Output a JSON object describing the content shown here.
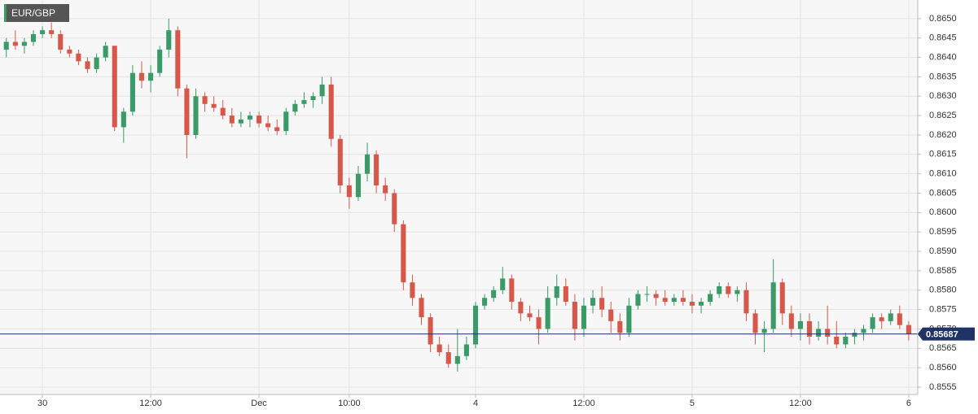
{
  "chart_data": {
    "type": "candlestick",
    "title": "EUR/GBP",
    "x": [
      -4,
      -3,
      -2,
      -1,
      0,
      1,
      2,
      3,
      4,
      5,
      6,
      7,
      8,
      9,
      10,
      11,
      12,
      13,
      14,
      15,
      16,
      17,
      18,
      19,
      20,
      21,
      22,
      23,
      24,
      25,
      26,
      27,
      28,
      29,
      30,
      31,
      32,
      33,
      34,
      35,
      36,
      37,
      38,
      39,
      40,
      41,
      42,
      43,
      44,
      45,
      46,
      47,
      48,
      49,
      50,
      51,
      52,
      53,
      54,
      55,
      56,
      57,
      58,
      59,
      60,
      61,
      62,
      63,
      64,
      65,
      66,
      67,
      68,
      69,
      70,
      71,
      72,
      73,
      74,
      75,
      76,
      77,
      78,
      79,
      80,
      81,
      82,
      83,
      84,
      85,
      86,
      87,
      88,
      89,
      90,
      91,
      92,
      93,
      94,
      95,
      96
    ],
    "open": [
      0.8642,
      0.8644,
      0.8643,
      0.8644,
      0.8646,
      0.8647,
      0.8646,
      0.8642,
      0.8641,
      0.8639,
      0.8637,
      0.864,
      0.8643,
      0.8622,
      0.8626,
      0.8636,
      0.8634,
      0.8636,
      0.8642,
      0.8647,
      0.8632,
      0.862,
      0.863,
      0.8628,
      0.8627,
      0.8625,
      0.8623,
      0.8624,
      0.8625,
      0.8623,
      0.8622,
      0.8621,
      0.8626,
      0.8628,
      0.8629,
      0.863,
      0.8633,
      0.8619,
      0.8607,
      0.8604,
      0.861,
      0.8615,
      0.8607,
      0.8605,
      0.8597,
      0.8582,
      0.8578,
      0.8573,
      0.8566,
      0.8564,
      0.8561,
      0.8563,
      0.8566,
      0.8576,
      0.8578,
      0.858,
      0.8583,
      0.8577,
      0.8574,
      0.8573,
      0.857,
      0.8578,
      0.8581,
      0.8577,
      0.857,
      0.8576,
      0.8578,
      0.8575,
      0.8572,
      0.8569,
      0.8576,
      0.8579,
      0.8579,
      0.8578,
      0.8577,
      0.8578,
      0.8577,
      0.8576,
      0.8577,
      0.8579,
      0.8581,
      0.8579,
      0.858,
      0.8574,
      0.8569,
      0.857,
      0.8582,
      0.8574,
      0.857,
      0.8572,
      0.8568,
      0.857,
      0.8568,
      0.8566,
      0.8568,
      0.8569,
      0.857,
      0.8573,
      0.8572,
      0.8574,
      0.8571
    ],
    "high": [
      0.8645,
      0.8647,
      0.8645,
      0.8647,
      0.8648,
      0.8649,
      0.8647,
      0.8643,
      0.8642,
      0.864,
      0.8641,
      0.8644,
      0.8643,
      0.8627,
      0.8638,
      0.8639,
      0.8638,
      0.8643,
      0.865,
      0.8648,
      0.8633,
      0.8632,
      0.8631,
      0.863,
      0.8629,
      0.8627,
      0.8626,
      0.8626,
      0.8626,
      0.8625,
      0.8624,
      0.8627,
      0.8629,
      0.8631,
      0.8631,
      0.8635,
      0.8635,
      0.862,
      0.8609,
      0.8612,
      0.8618,
      0.8616,
      0.8609,
      0.8606,
      0.8598,
      0.8584,
      0.8579,
      0.8574,
      0.8568,
      0.8566,
      0.857,
      0.8568,
      0.8577,
      0.8579,
      0.8581,
      0.8586,
      0.8584,
      0.8578,
      0.8576,
      0.8575,
      0.8581,
      0.8584,
      0.8583,
      0.8579,
      0.8578,
      0.858,
      0.8581,
      0.8577,
      0.8574,
      0.8578,
      0.858,
      0.8581,
      0.858,
      0.858,
      0.8579,
      0.858,
      0.8579,
      0.8578,
      0.858,
      0.8582,
      0.8582,
      0.8581,
      0.8582,
      0.8575,
      0.8572,
      0.8588,
      0.8583,
      0.8576,
      0.8574,
      0.8574,
      0.8572,
      0.8576,
      0.8572,
      0.8569,
      0.857,
      0.8571,
      0.8574,
      0.8574,
      0.8575,
      0.8576,
      0.8572
    ],
    "low": [
      0.864,
      0.8642,
      0.8641,
      0.8643,
      0.8645,
      0.8645,
      0.8641,
      0.864,
      0.8638,
      0.8636,
      0.8636,
      0.8639,
      0.8621,
      0.8618,
      0.8625,
      0.8632,
      0.8631,
      0.8635,
      0.864,
      0.863,
      0.8614,
      0.8619,
      0.8626,
      0.8626,
      0.8624,
      0.8622,
      0.8622,
      0.8622,
      0.8622,
      0.8621,
      0.862,
      0.862,
      0.8625,
      0.8627,
      0.8627,
      0.8628,
      0.8617,
      0.8605,
      0.8601,
      0.8603,
      0.8608,
      0.8605,
      0.8603,
      0.8595,
      0.858,
      0.8576,
      0.8571,
      0.8564,
      0.8563,
      0.856,
      0.8559,
      0.8562,
      0.8565,
      0.8575,
      0.8577,
      0.8579,
      0.8575,
      0.8572,
      0.8572,
      0.8566,
      0.8569,
      0.8576,
      0.8576,
      0.8567,
      0.8568,
      0.8574,
      0.8573,
      0.8569,
      0.8567,
      0.8568,
      0.8575,
      0.8577,
      0.8576,
      0.8576,
      0.8576,
      0.8576,
      0.8574,
      0.8574,
      0.8576,
      0.8578,
      0.8578,
      0.8577,
      0.8572,
      0.8566,
      0.8564,
      0.8569,
      0.8571,
      0.8568,
      0.8567,
      0.8566,
      0.8567,
      0.8566,
      0.8565,
      0.8565,
      0.8566,
      0.8567,
      0.8569,
      0.857,
      0.8571,
      0.857,
      0.8567
    ],
    "close": [
      0.8644,
      0.8643,
      0.8644,
      0.8646,
      0.8647,
      0.8646,
      0.8642,
      0.8641,
      0.8639,
      0.8637,
      0.864,
      0.8643,
      0.8622,
      0.8626,
      0.8636,
      0.8634,
      0.8636,
      0.8642,
      0.8647,
      0.8632,
      0.862,
      0.863,
      0.8628,
      0.8627,
      0.8625,
      0.8623,
      0.8624,
      0.8625,
      0.8623,
      0.8622,
      0.8621,
      0.8626,
      0.8628,
      0.8629,
      0.863,
      0.8633,
      0.8619,
      0.8607,
      0.8604,
      0.861,
      0.8615,
      0.8607,
      0.8605,
      0.8597,
      0.8582,
      0.8578,
      0.8573,
      0.8566,
      0.8564,
      0.8561,
      0.8563,
      0.8566,
      0.8576,
      0.8578,
      0.858,
      0.8583,
      0.8577,
      0.8574,
      0.8573,
      0.857,
      0.8578,
      0.8581,
      0.8577,
      0.857,
      0.8576,
      0.8578,
      0.8575,
      0.8572,
      0.8569,
      0.8576,
      0.8579,
      0.8579,
      0.8578,
      0.8577,
      0.8578,
      0.8577,
      0.8576,
      0.8577,
      0.8579,
      0.8581,
      0.8579,
      0.858,
      0.8574,
      0.8569,
      0.857,
      0.8582,
      0.8574,
      0.857,
      0.8572,
      0.8568,
      0.857,
      0.8568,
      0.8566,
      0.8568,
      0.8569,
      0.857,
      0.8573,
      0.8572,
      0.8574,
      0.8571,
      0.85687
    ],
    "up_color": "#3a9a68",
    "down_color": "#d6584a",
    "last_price": 0.85687,
    "last_price_color": "#1f3364",
    "xlim": [
      -4.7,
      97.0
    ],
    "xticks": [
      {
        "value": 0,
        "label": "30"
      },
      {
        "value": 12,
        "label": "12:00"
      },
      {
        "value": 24,
        "label": "Dec"
      },
      {
        "value": 34,
        "label": "10:00"
      },
      {
        "value": 48,
        "label": "4"
      },
      {
        "value": 60,
        "label": "12:00"
      },
      {
        "value": 72,
        "label": "5"
      },
      {
        "value": 84,
        "label": "12:00"
      },
      {
        "value": 96,
        "label": "6"
      }
    ],
    "ylim": [
      0.85531,
      0.86548
    ],
    "yticks": [
      {
        "value": 0.8555,
        "label": "0.8555"
      },
      {
        "value": 0.856,
        "label": "0.8560"
      },
      {
        "value": 0.8565,
        "label": "0.8565"
      },
      {
        "value": 0.857,
        "label": "0.8570"
      },
      {
        "value": 0.8575,
        "label": "0.8575"
      },
      {
        "value": 0.858,
        "label": "0.8580"
      },
      {
        "value": 0.8585,
        "label": "0.8585"
      },
      {
        "value": 0.859,
        "label": "0.8590"
      },
      {
        "value": 0.8595,
        "label": "0.8595"
      },
      {
        "value": 0.86,
        "label": "0.8600"
      },
      {
        "value": 0.8605,
        "label": "0.8605"
      },
      {
        "value": 0.861,
        "label": "0.8610"
      },
      {
        "value": 0.8615,
        "label": "0.8615"
      },
      {
        "value": 0.862,
        "label": "0.8620"
      },
      {
        "value": 0.8625,
        "label": "0.8625"
      },
      {
        "value": 0.863,
        "label": "0.8630"
      },
      {
        "value": 0.8635,
        "label": "0.8635"
      },
      {
        "value": 0.864,
        "label": "0.8640"
      },
      {
        "value": 0.8645,
        "label": "0.8645"
      },
      {
        "value": 0.865,
        "label": "0.8650"
      }
    ],
    "grid": true
  }
}
